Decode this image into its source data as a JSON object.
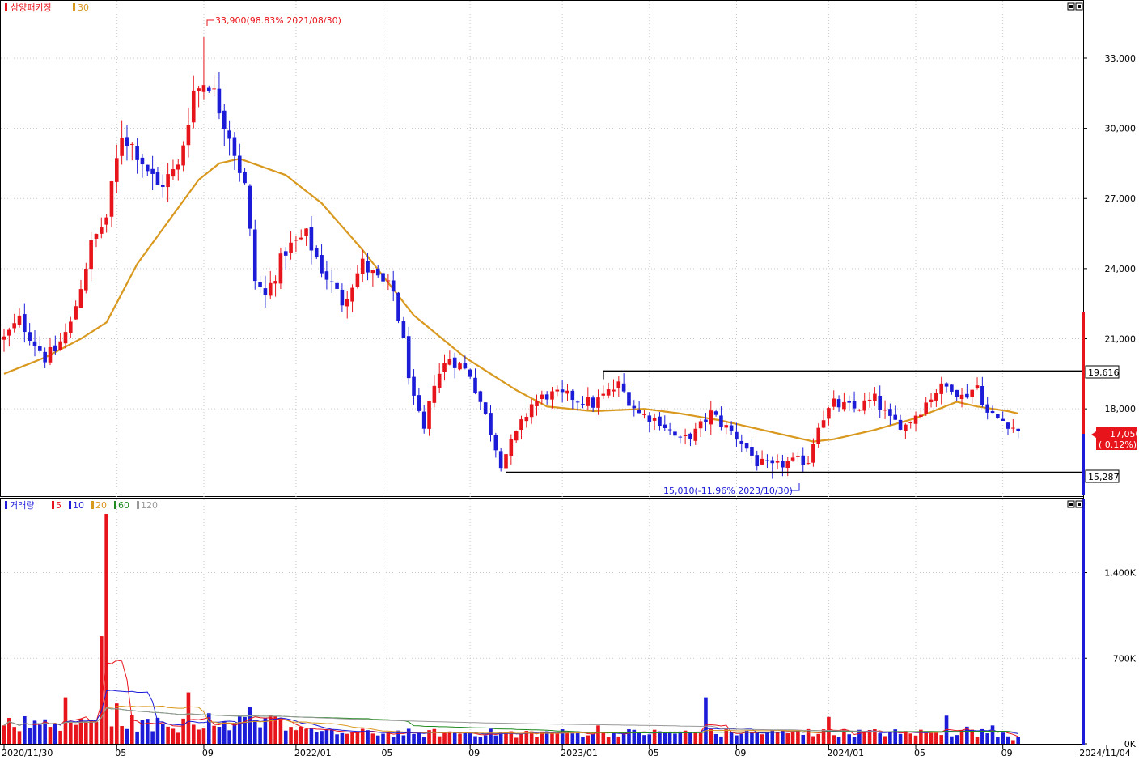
{
  "colors": {
    "up": "#e8141b",
    "down": "#1c1cd8",
    "ma30": "#d9981e",
    "vol_ma5": "#e8141b",
    "vol_ma10": "#1c1cd8",
    "vol_ma20": "#d9981e",
    "vol_ma60": "#1f8a1f",
    "vol_ma120": "#999999",
    "grid": "#c8c8c8",
    "axis": "#000000"
  },
  "price_panel": {
    "legend_name": "삼양패키징",
    "legend_ma": "30",
    "high_annotation": "33,900(98.83% 2021/08/30)",
    "low_annotation": "15,010(-11.96% 2023/10/30)",
    "upper_box_label": "19,616",
    "lower_box_label": "15,287",
    "current_price": "17,050",
    "current_change": "( 0.12%)",
    "panel_button_icon": "window-buttons-icon"
  },
  "volume_panel": {
    "legend_name": "거래량",
    "legend_items": [
      {
        "label": "5",
        "color_key": "vol_ma5"
      },
      {
        "label": "10",
        "color_key": "vol_ma10"
      },
      {
        "label": "20",
        "color_key": "vol_ma20"
      },
      {
        "label": "60",
        "color_key": "vol_ma60"
      },
      {
        "label": "120",
        "color_key": "vol_ma120"
      }
    ]
  },
  "x_axis_labels": [
    "2020/11/30",
    "05",
    "09",
    "2022/01",
    "05",
    "09",
    "2023/01",
    "05",
    "09",
    "2024/01",
    "05",
    "09",
    "2024/11/04"
  ],
  "chart_data": [
    {
      "type": "candlestick",
      "title": "삼양패키징",
      "y_ticks": [
        "18,000",
        "21,000",
        "24,000",
        "27,000",
        "30,000",
        "33,000"
      ],
      "y_tick_values": [
        18000,
        21000,
        24000,
        27000,
        30000,
        33000
      ],
      "ylim": [
        14300,
        34800
      ],
      "x_range_weeks": [
        0,
        205
      ],
      "high": {
        "value": 33900,
        "week": 39
      },
      "low": {
        "value": 15010,
        "week": 150
      },
      "box": {
        "upper": 19616,
        "lower": 15287,
        "upper_start_week": 117,
        "lower_start_week": 98
      },
      "current": 17050,
      "ma30_anchors": [
        [
          0,
          19500
        ],
        [
          8,
          20200
        ],
        [
          15,
          21000
        ],
        [
          20,
          21700
        ],
        [
          26,
          24200
        ],
        [
          32,
          26000
        ],
        [
          38,
          27800
        ],
        [
          42,
          28500
        ],
        [
          46,
          28700
        ],
        [
          55,
          28000
        ],
        [
          62,
          26800
        ],
        [
          70,
          24800
        ],
        [
          80,
          22000
        ],
        [
          90,
          20200
        ],
        [
          100,
          18800
        ],
        [
          106,
          18100
        ],
        [
          115,
          17900
        ],
        [
          125,
          18000
        ],
        [
          132,
          17800
        ],
        [
          140,
          17500
        ],
        [
          150,
          17000
        ],
        [
          158,
          16600
        ],
        [
          162,
          16700
        ],
        [
          170,
          17100
        ],
        [
          178,
          17600
        ],
        [
          186,
          18300
        ],
        [
          190,
          18100
        ],
        [
          196,
          17900
        ],
        [
          198,
          17800
        ]
      ],
      "candles_anchors": [
        [
          0,
          21000
        ],
        [
          3,
          21800
        ],
        [
          8,
          20200
        ],
        [
          10,
          20500
        ],
        [
          13,
          21600
        ],
        [
          17,
          25000
        ],
        [
          20,
          26200
        ],
        [
          23,
          29800
        ],
        [
          26,
          29000
        ],
        [
          30,
          27500
        ],
        [
          34,
          28300
        ],
        [
          37,
          31600
        ],
        [
          40,
          32000
        ],
        [
          44,
          29800
        ],
        [
          47,
          27500
        ],
        [
          49,
          23500
        ],
        [
          51,
          22800
        ],
        [
          55,
          24800
        ],
        [
          59,
          25400
        ],
        [
          62,
          24000
        ],
        [
          66,
          22600
        ],
        [
          70,
          24200
        ],
        [
          73,
          23500
        ],
        [
          76,
          23000
        ],
        [
          78,
          20800
        ],
        [
          80,
          18300
        ],
        [
          82,
          17000
        ],
        [
          84,
          19200
        ],
        [
          87,
          20200
        ],
        [
          91,
          19500
        ],
        [
          94,
          17700
        ],
        [
          97,
          15700
        ],
        [
          100,
          16900
        ],
        [
          103,
          18200
        ],
        [
          106,
          18600
        ],
        [
          111,
          18500
        ],
        [
          115,
          18200
        ],
        [
          118,
          18700
        ],
        [
          120,
          19000
        ],
        [
          124,
          17800
        ],
        [
          128,
          17500
        ],
        [
          132,
          16600
        ],
        [
          135,
          17000
        ],
        [
          138,
          17800
        ],
        [
          141,
          17200
        ],
        [
          144,
          16600
        ],
        [
          147,
          15700
        ],
        [
          150,
          15500
        ],
        [
          153,
          15700
        ],
        [
          157,
          15800
        ],
        [
          159,
          17400
        ],
        [
          162,
          18200
        ],
        [
          166,
          18000
        ],
        [
          170,
          18400
        ],
        [
          173,
          17500
        ],
        [
          176,
          17300
        ],
        [
          179,
          18000
        ],
        [
          182,
          18800
        ],
        [
          185,
          19000
        ],
        [
          187,
          18500
        ],
        [
          190,
          19000
        ],
        [
          192,
          17800
        ],
        [
          196,
          17400
        ],
        [
          198,
          17050
        ]
      ]
    },
    {
      "type": "bar",
      "title": "거래량",
      "y_ticks": [
        "0K",
        "700K",
        "1,400K"
      ],
      "y_tick_values": [
        0,
        700000,
        1400000
      ],
      "ylim": [
        0,
        1900000
      ],
      "peaks": [
        [
          0,
          150000
        ],
        [
          8,
          200000
        ],
        [
          12,
          380000
        ],
        [
          18,
          180000
        ],
        [
          19,
          880000
        ],
        [
          20,
          1880000
        ],
        [
          22,
          330000
        ],
        [
          26,
          100000
        ],
        [
          34,
          90000
        ],
        [
          36,
          420000
        ],
        [
          40,
          250000
        ],
        [
          48,
          300000
        ],
        [
          60,
          130000
        ],
        [
          80,
          80000
        ],
        [
          100,
          50000
        ],
        [
          116,
          150000
        ],
        [
          120,
          60000
        ],
        [
          137,
          380000
        ],
        [
          140,
          60000
        ],
        [
          157,
          120000
        ],
        [
          161,
          220000
        ],
        [
          175,
          80000
        ],
        [
          184,
          230000
        ],
        [
          188,
          140000
        ],
        [
          193,
          150000
        ],
        [
          197,
          30000
        ]
      ],
      "ma_base_levels": {
        "ma5": 60000,
        "ma10": 60000,
        "ma20": 80000,
        "ma60": 110000,
        "ma120": 120000
      }
    }
  ]
}
